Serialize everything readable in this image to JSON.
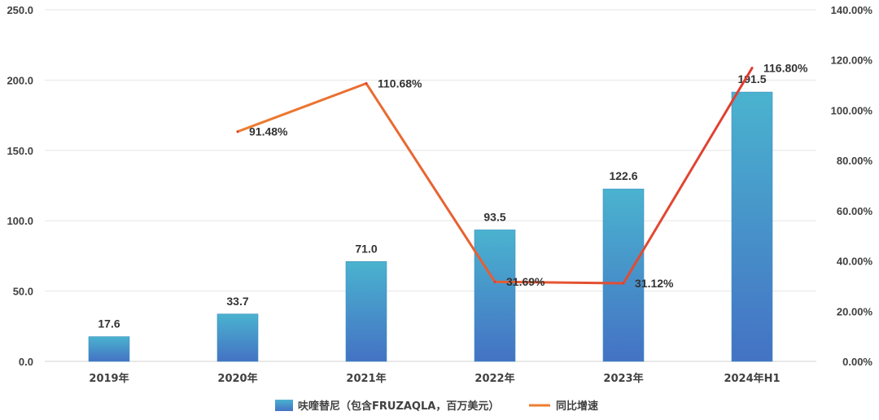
{
  "chart_data": {
    "type": "bar",
    "categories": [
      "2019年",
      "2020年",
      "2021年",
      "2022年",
      "2023年",
      "2024年H1"
    ],
    "series": [
      {
        "name": "呋喹替尼（包含FRUZAQLA，百万美元）",
        "type": "bar",
        "axis": "left",
        "values": [
          17.6,
          33.7,
          71.0,
          93.5,
          122.6,
          191.5
        ],
        "labels": [
          "17.6",
          "33.7",
          "71.0",
          "93.5",
          "122.6",
          "191.5"
        ]
      },
      {
        "name": "同比增速",
        "type": "line",
        "axis": "right",
        "values": [
          null,
          91.48,
          110.68,
          31.69,
          31.12,
          116.8
        ],
        "labels": [
          null,
          "91.48%",
          "110.68%",
          "31.69%",
          "31.12%",
          "116.80%"
        ]
      }
    ],
    "y_left": {
      "range": [
        0,
        250
      ],
      "ticks": [
        "0.0",
        "50.0",
        "100.0",
        "150.0",
        "200.0",
        "250.0"
      ]
    },
    "y_right": {
      "range": [
        0,
        140
      ],
      "ticks": [
        "0.00%",
        "20.00%",
        "40.00%",
        "60.00%",
        "80.00%",
        "100.00%",
        "120.00%",
        "140.00%"
      ]
    },
    "grid": true,
    "legend": "bottom",
    "colors": {
      "bar_top": "#4ab3cf",
      "bar_bottom": "#4472c4",
      "line_start": "#ed7d31",
      "line_end": "#e03c31",
      "grid": "#e6e6e6"
    }
  }
}
